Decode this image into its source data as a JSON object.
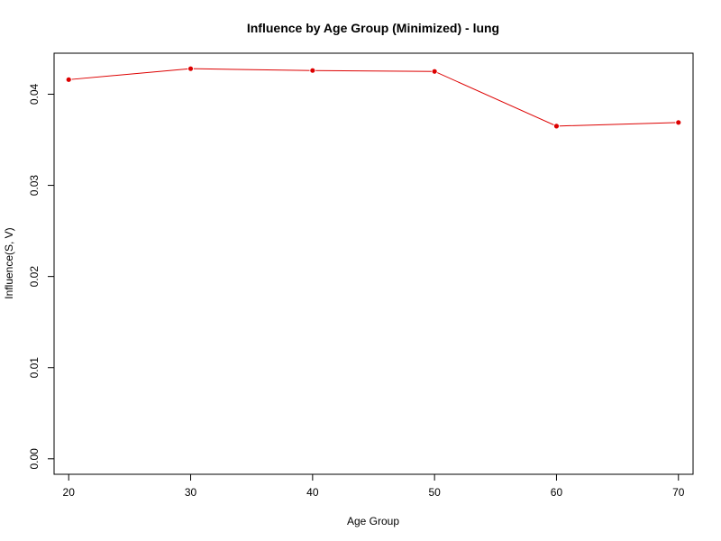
{
  "chart_data": {
    "type": "line",
    "title": "Influence by Age Group (Minimized) - lung",
    "xlabel": "Age Group",
    "ylabel": "Influence(S, V)",
    "xlim": [
      18.8,
      71.2
    ],
    "ylim": [
      -0.0017,
      0.0445
    ],
    "xticks": [
      20,
      30,
      40,
      50,
      60,
      70
    ],
    "xtick_labels": [
      "20",
      "30",
      "40",
      "50",
      "60",
      "70"
    ],
    "yticks": [
      0.0,
      0.01,
      0.02,
      0.03,
      0.04
    ],
    "ytick_labels": [
      "0.00",
      "0.01",
      "0.02",
      "0.03",
      "0.04"
    ],
    "grid": false,
    "series": [
      {
        "color": "#dd0000",
        "marker": "filled-circle",
        "x": [
          20,
          30,
          40,
          50,
          60,
          70
        ],
        "y": [
          0.0416,
          0.0428,
          0.0426,
          0.0425,
          0.0365,
          0.0369
        ]
      }
    ]
  }
}
